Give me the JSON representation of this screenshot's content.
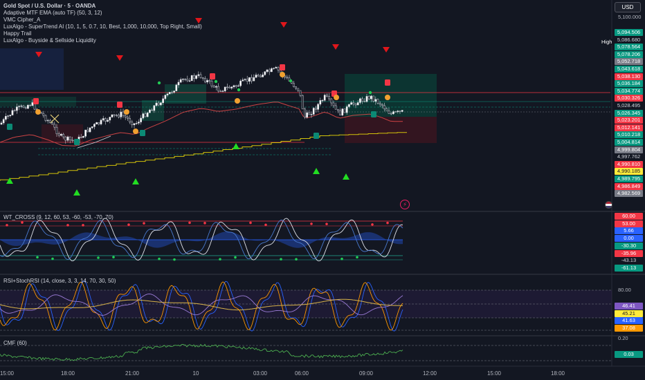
{
  "header": {
    "symbol_title": "Gold Spot / U.S. Dollar · 5 · OANDA",
    "indicators": [
      "Adaptive MTF EMA (auto TF) (50, 3, 12)",
      "VMC Cipher_A",
      "LuxAlgo - SuperTrend AI (10, 1, 5, 0.7, 10, Best, 1,000, 10,000, Top Right, Small)",
      "Happy Trail",
      "LuxAlgo - Buyside & Sellside Liquidity"
    ],
    "currency_button": "USD"
  },
  "price_axis": {
    "top_label": "5,100.000",
    "high_label": "High",
    "tags": [
      {
        "value": "5,094.506",
        "color": "#089981"
      },
      {
        "value": "5,086.680",
        "color": "#131722"
      },
      {
        "value": "5,078.564",
        "color": "#089981"
      },
      {
        "value": "5,078.206",
        "color": "#089981"
      },
      {
        "value": "5,052.718",
        "color": "#787b86"
      },
      {
        "value": "5,043.618",
        "color": "#089981"
      },
      {
        "value": "5,038.130",
        "color": "#f23645"
      },
      {
        "value": "5,036.184",
        "color": "#089981"
      },
      {
        "value": "5,034.774",
        "color": "#089981"
      },
      {
        "value": "5,030.326",
        "color": "#f23645"
      },
      {
        "value": "5,028.495",
        "color": "#131722"
      },
      {
        "value": "5,026.345",
        "color": "#089981"
      },
      {
        "value": "5,023.201",
        "color": "#f23645"
      },
      {
        "value": "5,012.141",
        "color": "#f23645"
      },
      {
        "value": "5,010.218",
        "color": "#089981"
      },
      {
        "value": "5,004.814",
        "color": "#089981"
      },
      {
        "value": "4,999.804",
        "color": "#787b86"
      },
      {
        "value": "4,997.762",
        "color": "#131722"
      },
      {
        "value": "4,990.810",
        "color": "#f23645"
      },
      {
        "value": "4,990.185",
        "color": "#ffeb3b"
      },
      {
        "value": "4,989.795",
        "color": "#089981"
      },
      {
        "value": "4,986.849",
        "color": "#f23645"
      },
      {
        "value": "4,982.569",
        "color": "#787b86"
      }
    ]
  },
  "wt_pane": {
    "label": "WT_CROSS (9, 12, 60, 53, -60, -53, -70, 70)",
    "tags": [
      {
        "value": "60.00",
        "color": "#f23645"
      },
      {
        "value": "53.00",
        "color": "#f23645"
      },
      {
        "value": "5.66",
        "color": "#2962ff"
      },
      {
        "value": "0.00",
        "color": "#2962ff"
      },
      {
        "value": "-30.30",
        "color": "#089981"
      },
      {
        "value": "-35.96",
        "color": "#f23645"
      },
      {
        "value": "-43.13",
        "color": "#131722"
      },
      {
        "value": "-61.13",
        "color": "#089981"
      }
    ]
  },
  "rsi_pane": {
    "label": "RSI+StochRSI (14, close, 3, 3, 14, 70, 30, 50)",
    "level_label": "80.00",
    "tags": [
      {
        "value": "46.41",
        "color": "#7e57c2"
      },
      {
        "value": "45.21",
        "color": "#ffeb3b"
      },
      {
        "value": "41.63",
        "color": "#2962ff"
      },
      {
        "value": "37.08",
        "color": "#ff9800"
      }
    ]
  },
  "cmf_pane": {
    "label": "CMF (60)",
    "level_label": "0.20",
    "value_tag": {
      "value": "0.03",
      "color": "#089981"
    }
  },
  "time_axis": [
    {
      "label": "15:00"
    },
    {
      "label": "18:00"
    },
    {
      "label": "21:00"
    },
    {
      "label": "10"
    },
    {
      "label": "03:00"
    },
    {
      "label": "06:00"
    },
    {
      "label": "09:00"
    },
    {
      "label": "12:00"
    },
    {
      "label": "15:00"
    },
    {
      "label": "18:00"
    }
  ],
  "colors": {
    "background": "#131722",
    "up": "#ffffff",
    "down": "#ffffff",
    "bull": "#089981",
    "bear": "#f23645",
    "supertrend": "#d4c40a",
    "ema": "#e04848"
  }
}
